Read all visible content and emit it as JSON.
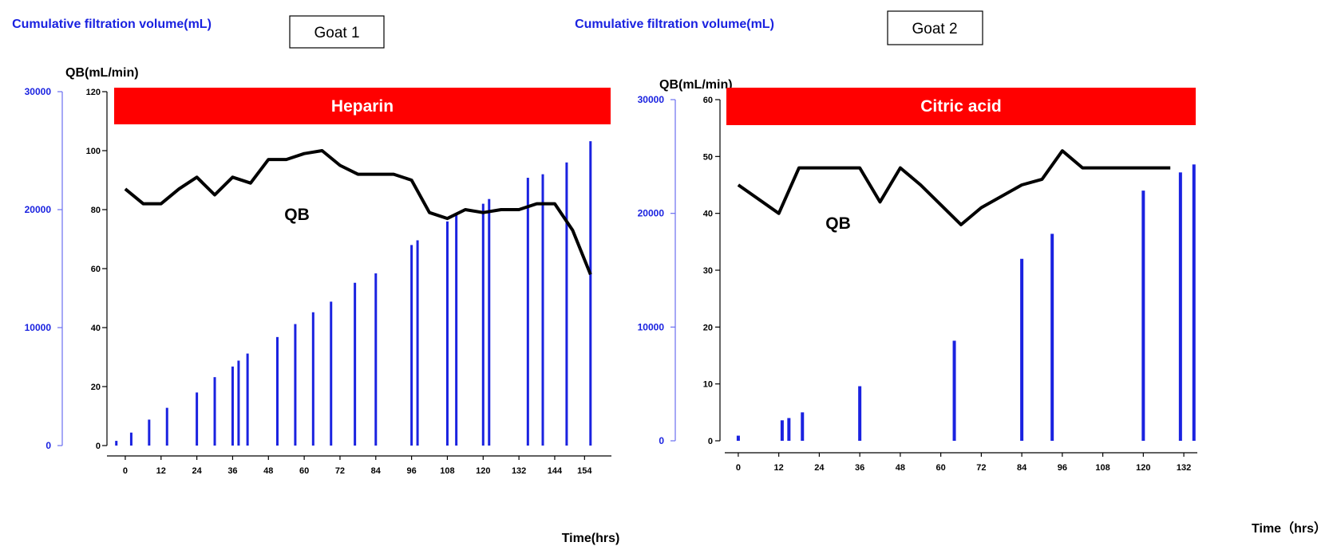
{
  "chart_data": [
    {
      "type": "bar+line",
      "title": "Goat 1",
      "banner": "Heparin",
      "ylabel_left": "Cumulative filtration volume(mL)",
      "ylabel_right": "QB(mL/min)",
      "xlabel": "Time(hrs)",
      "series_label": "QB",
      "left_axis": {
        "min": 0,
        "max": 30000,
        "ticks": [
          0,
          10000,
          20000,
          30000
        ]
      },
      "right_axis": {
        "min": 0,
        "max": 120,
        "ticks": [
          0,
          20,
          40,
          60,
          80,
          100,
          120
        ]
      },
      "x_axis": {
        "min": -4,
        "max": 159,
        "ticks": [
          0,
          12,
          24,
          36,
          48,
          60,
          72,
          84,
          96,
          108,
          120,
          132,
          144,
          154
        ]
      },
      "colors": {
        "bars": "#1a22e0",
        "line": "#000000",
        "banner": "#ff0000"
      },
      "bars": {
        "x": [
          -3,
          2,
          8,
          14,
          24,
          30,
          36,
          38,
          41,
          51,
          57,
          63,
          69,
          77,
          84,
          96,
          98,
          108,
          111,
          120,
          122,
          135,
          140,
          148,
          156
        ],
        "values": [
          400,
          1100,
          2200,
          3200,
          4500,
          5800,
          6700,
          7200,
          7800,
          9200,
          10300,
          11300,
          12200,
          13800,
          14600,
          17000,
          17400,
          19000,
          19600,
          20500,
          20900,
          22700,
          23000,
          24000,
          25800
        ]
      },
      "line": {
        "x": [
          0,
          6,
          12,
          18,
          24,
          30,
          36,
          42,
          48,
          54,
          60,
          66,
          72,
          78,
          84,
          90,
          96,
          102,
          108,
          114,
          120,
          126,
          132,
          138,
          144,
          150,
          156
        ],
        "values": [
          87,
          82,
          82,
          87,
          91,
          85,
          91,
          89,
          97,
          97,
          99,
          100,
          95,
          92,
          92,
          92,
          90,
          79,
          77,
          80,
          79,
          80,
          80,
          82,
          82,
          73,
          58
        ]
      }
    },
    {
      "type": "bar+line",
      "title": "Goat 2",
      "banner": "Citric acid",
      "ylabel_left": "Cumulative filtration volume(mL)",
      "ylabel_right": "QB(mL/min)",
      "xlabel": "Time（hrs）",
      "series_label": "QB",
      "left_axis": {
        "min": 0,
        "max": 30000,
        "ticks": [
          0,
          10000,
          20000,
          30000
        ]
      },
      "right_axis": {
        "min": 0,
        "max": 60,
        "ticks": [
          0,
          10,
          20,
          30,
          40,
          50,
          60
        ]
      },
      "x_axis": {
        "min": -4,
        "max": 136,
        "ticks": [
          0,
          12,
          24,
          36,
          48,
          60,
          72,
          84,
          96,
          108,
          120,
          132
        ]
      },
      "colors": {
        "bars": "#1a22e0",
        "line": "#000000",
        "banner": "#ff0000"
      },
      "bars": {
        "x": [
          0,
          13,
          15,
          19,
          36,
          64,
          84,
          93,
          120,
          131,
          135
        ],
        "values": [
          450,
          1800,
          2000,
          2500,
          4800,
          8800,
          16000,
          18200,
          22000,
          23600,
          24300
        ]
      },
      "line": {
        "x": [
          0,
          12,
          18,
          24,
          36,
          42,
          48,
          54,
          66,
          72,
          84,
          90,
          96,
          102,
          108,
          114,
          120,
          128
        ],
        "values": [
          45,
          40,
          48,
          48,
          48,
          42,
          48,
          45,
          38,
          41,
          45,
          46,
          51,
          48,
          48,
          48,
          48,
          48
        ]
      }
    }
  ]
}
